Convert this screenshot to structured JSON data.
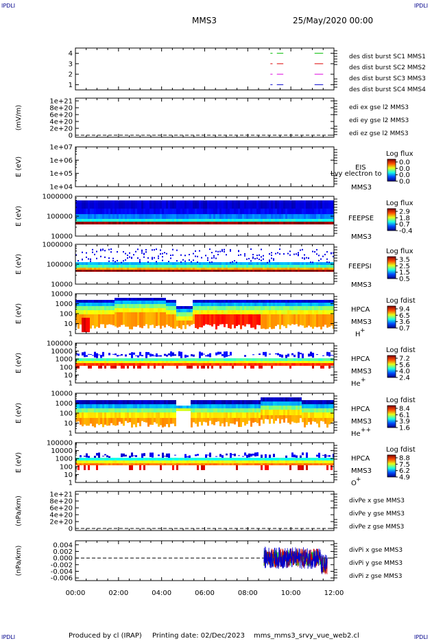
{
  "header": {
    "corner_labels": [
      "IPDLI",
      "IPDLI",
      "IPDLI",
      "IPDLI"
    ],
    "mission": "MMS3",
    "date": "25/May/2020 00:00"
  },
  "footer": {
    "produced_by": "Produced by cl (IRAP)",
    "printing_date": "Printing date: 02/Dec/2023",
    "script_name": "mms_mms3_srvy_vue_web2.cl"
  },
  "x_axis": {
    "range": [
      "00:00",
      "12:00"
    ],
    "tick_labels": [
      "00:00",
      "02:00",
      "04:00",
      "06:00",
      "08:00",
      "10:00",
      "12:00"
    ]
  },
  "colors": {
    "mms1": "#00bb00",
    "mms2": "#dd0000",
    "mms3": "#dd00dd",
    "mms4": "#0000cc",
    "x": "#cc0000",
    "y": "#00bb00",
    "z": "#0000cc"
  },
  "chart_data": [
    {
      "type": "line",
      "id": "burst",
      "yticks": [
        "4",
        "3",
        "2",
        "1"
      ],
      "ylim": [
        0.5,
        4.5
      ],
      "legend": [
        {
          "text": "des dist burst SC1 MMS1",
          "color": "#0000cc"
        },
        {
          "text": "des dist burst SC2 MMS2",
          "color": "#dd00dd"
        },
        {
          "text": "des dist burst SC3 MMS3",
          "color": "#dd0000"
        },
        {
          "text": "des dist burst SC4 MMS4",
          "color": "#00bb00"
        }
      ],
      "series": [
        {
          "level": 4,
          "color": "#00bb00",
          "intervals": [
            [
              9.05,
              9.15
            ],
            [
              9.35,
              9.65
            ],
            [
              11.1,
              11.5
            ]
          ]
        },
        {
          "level": 3,
          "color": "#dd0000",
          "intervals": [
            [
              9.05,
              9.15
            ],
            [
              9.35,
              9.65
            ],
            [
              11.1,
              11.5
            ]
          ]
        },
        {
          "level": 2,
          "color": "#dd00dd",
          "intervals": [
            [
              9.05,
              9.15
            ],
            [
              9.35,
              9.65
            ],
            [
              11.1,
              11.5
            ]
          ]
        },
        {
          "level": 1,
          "color": "#0000cc",
          "intervals": [
            [
              9.05,
              9.15
            ],
            [
              9.35,
              9.65
            ],
            [
              11.1,
              11.5
            ]
          ]
        }
      ]
    },
    {
      "type": "line",
      "id": "edi",
      "ylabel": "(mV/m)",
      "yticks": [
        "1e+21",
        "8e+20",
        "6e+20",
        "4e+20",
        "2e+20",
        "0"
      ],
      "ylim": [
        0,
        1e+21
      ],
      "legend": [
        {
          "text": "edi ex gse l2 MMS3",
          "color": "#cc0000"
        },
        {
          "text": "edi ey gse l2 MMS3",
          "color": "#00bb00"
        },
        {
          "text": "edi ez gse l2 MMS3",
          "color": "#0000cc"
        }
      ],
      "zero_line": true
    },
    {
      "type": "heatmap",
      "id": "eis",
      "ylabel": "E (eV)",
      "yticks": [
        "1e+07",
        "1e+06",
        "1e+05",
        "1e+04"
      ],
      "instrument": [
        "EIS",
        "MMS3"
      ],
      "overlay_text": "Lvy electron to",
      "colorbar": {
        "title": "Log flux",
        "ticks": [
          "0.0",
          "0.0",
          "0.0",
          "0.0"
        ]
      }
    },
    {
      "type": "heatmap",
      "id": "feepse",
      "ylabel": "E (eV)",
      "yticks": [
        "1000000",
        "100000",
        "10000"
      ],
      "instrument": [
        "FEEPSE",
        "MMS3"
      ],
      "colorbar": {
        "title": "Log flux",
        "ticks": [
          "2.9",
          "1.8",
          "0.7",
          "-0.4"
        ]
      }
    },
    {
      "type": "heatmap",
      "id": "feepsi",
      "ylabel": "E (eV)",
      "yticks": [
        "1000000",
        "100000",
        "10000"
      ],
      "instrument": [
        "FEEPSI",
        "MMS3"
      ],
      "colorbar": {
        "title": "Log flux",
        "ticks": [
          "3.5",
          "2.5",
          "1.5",
          "0.5"
        ]
      }
    },
    {
      "type": "heatmap",
      "id": "hpca_h",
      "ylabel": "E (eV)",
      "yticks": [
        "10000",
        "1000",
        "100",
        "10",
        "1"
      ],
      "instrument": [
        "HPCA",
        "MMS3",
        "H",
        "+"
      ],
      "colorbar": {
        "title": "Log fdist",
        "ticks": [
          "9.4",
          "6.5",
          "3.6",
          "0.7"
        ]
      }
    },
    {
      "type": "heatmap",
      "id": "hpca_he",
      "ylabel": "E (eV)",
      "yticks": [
        "100000",
        "10000",
        "1000",
        "100",
        "10",
        "1"
      ],
      "instrument": [
        "HPCA",
        "MMS3",
        "He",
        "+"
      ],
      "colorbar": {
        "title": "Log fdist",
        "ticks": [
          "7.2",
          "5.6",
          "4.0",
          "2.4"
        ]
      }
    },
    {
      "type": "heatmap",
      "id": "hpca_hepp",
      "ylabel": "E (eV)",
      "yticks": [
        "10000",
        "1000",
        "100",
        "10",
        "1"
      ],
      "instrument": [
        "HPCA",
        "MMS3",
        "He",
        "++"
      ],
      "colorbar": {
        "title": "Log fdist",
        "ticks": [
          "8.4",
          "6.1",
          "3.9",
          "1.6"
        ]
      }
    },
    {
      "type": "heatmap",
      "id": "hpca_o",
      "ylabel": "E (eV)",
      "yticks": [
        "100000",
        "10000",
        "1000",
        "100",
        "10",
        "1"
      ],
      "instrument": [
        "HPCA",
        "MMS3",
        "O",
        "+"
      ],
      "colorbar": {
        "title": "Log fdist",
        "ticks": [
          "8.8",
          "7.5",
          "6.2",
          "4.9"
        ]
      }
    },
    {
      "type": "line",
      "id": "divpe",
      "ylabel": "(nPa/km)",
      "yticks": [
        "1e+21",
        "8e+20",
        "6e+20",
        "4e+20",
        "2e+20",
        "0"
      ],
      "ylim": [
        0,
        1e+21
      ],
      "legend": [
        {
          "text": "divPe x gse MMS3",
          "color": "#cc0000"
        },
        {
          "text": "divPe y gse MMS3",
          "color": "#00bb00"
        },
        {
          "text": "divPe z gse MMS3",
          "color": "#0000cc"
        }
      ],
      "zero_line": true
    },
    {
      "type": "line",
      "id": "divpi",
      "ylabel": "(nPa/km)",
      "yticks": [
        "0.004",
        "0.002",
        "0.000",
        "-0.002",
        "-0.004",
        "-0.006"
      ],
      "ylim": [
        -0.0068,
        0.0052
      ],
      "legend": [
        {
          "text": "divPi x gse MMS3",
          "color": "#cc0000"
        },
        {
          "text": "divPi y gse MMS3",
          "color": "#00bb00"
        },
        {
          "text": "divPi z gse MMS3",
          "color": "#0000cc"
        }
      ],
      "zero_line": true,
      "data_range": [
        8.75,
        11.7
      ]
    }
  ]
}
